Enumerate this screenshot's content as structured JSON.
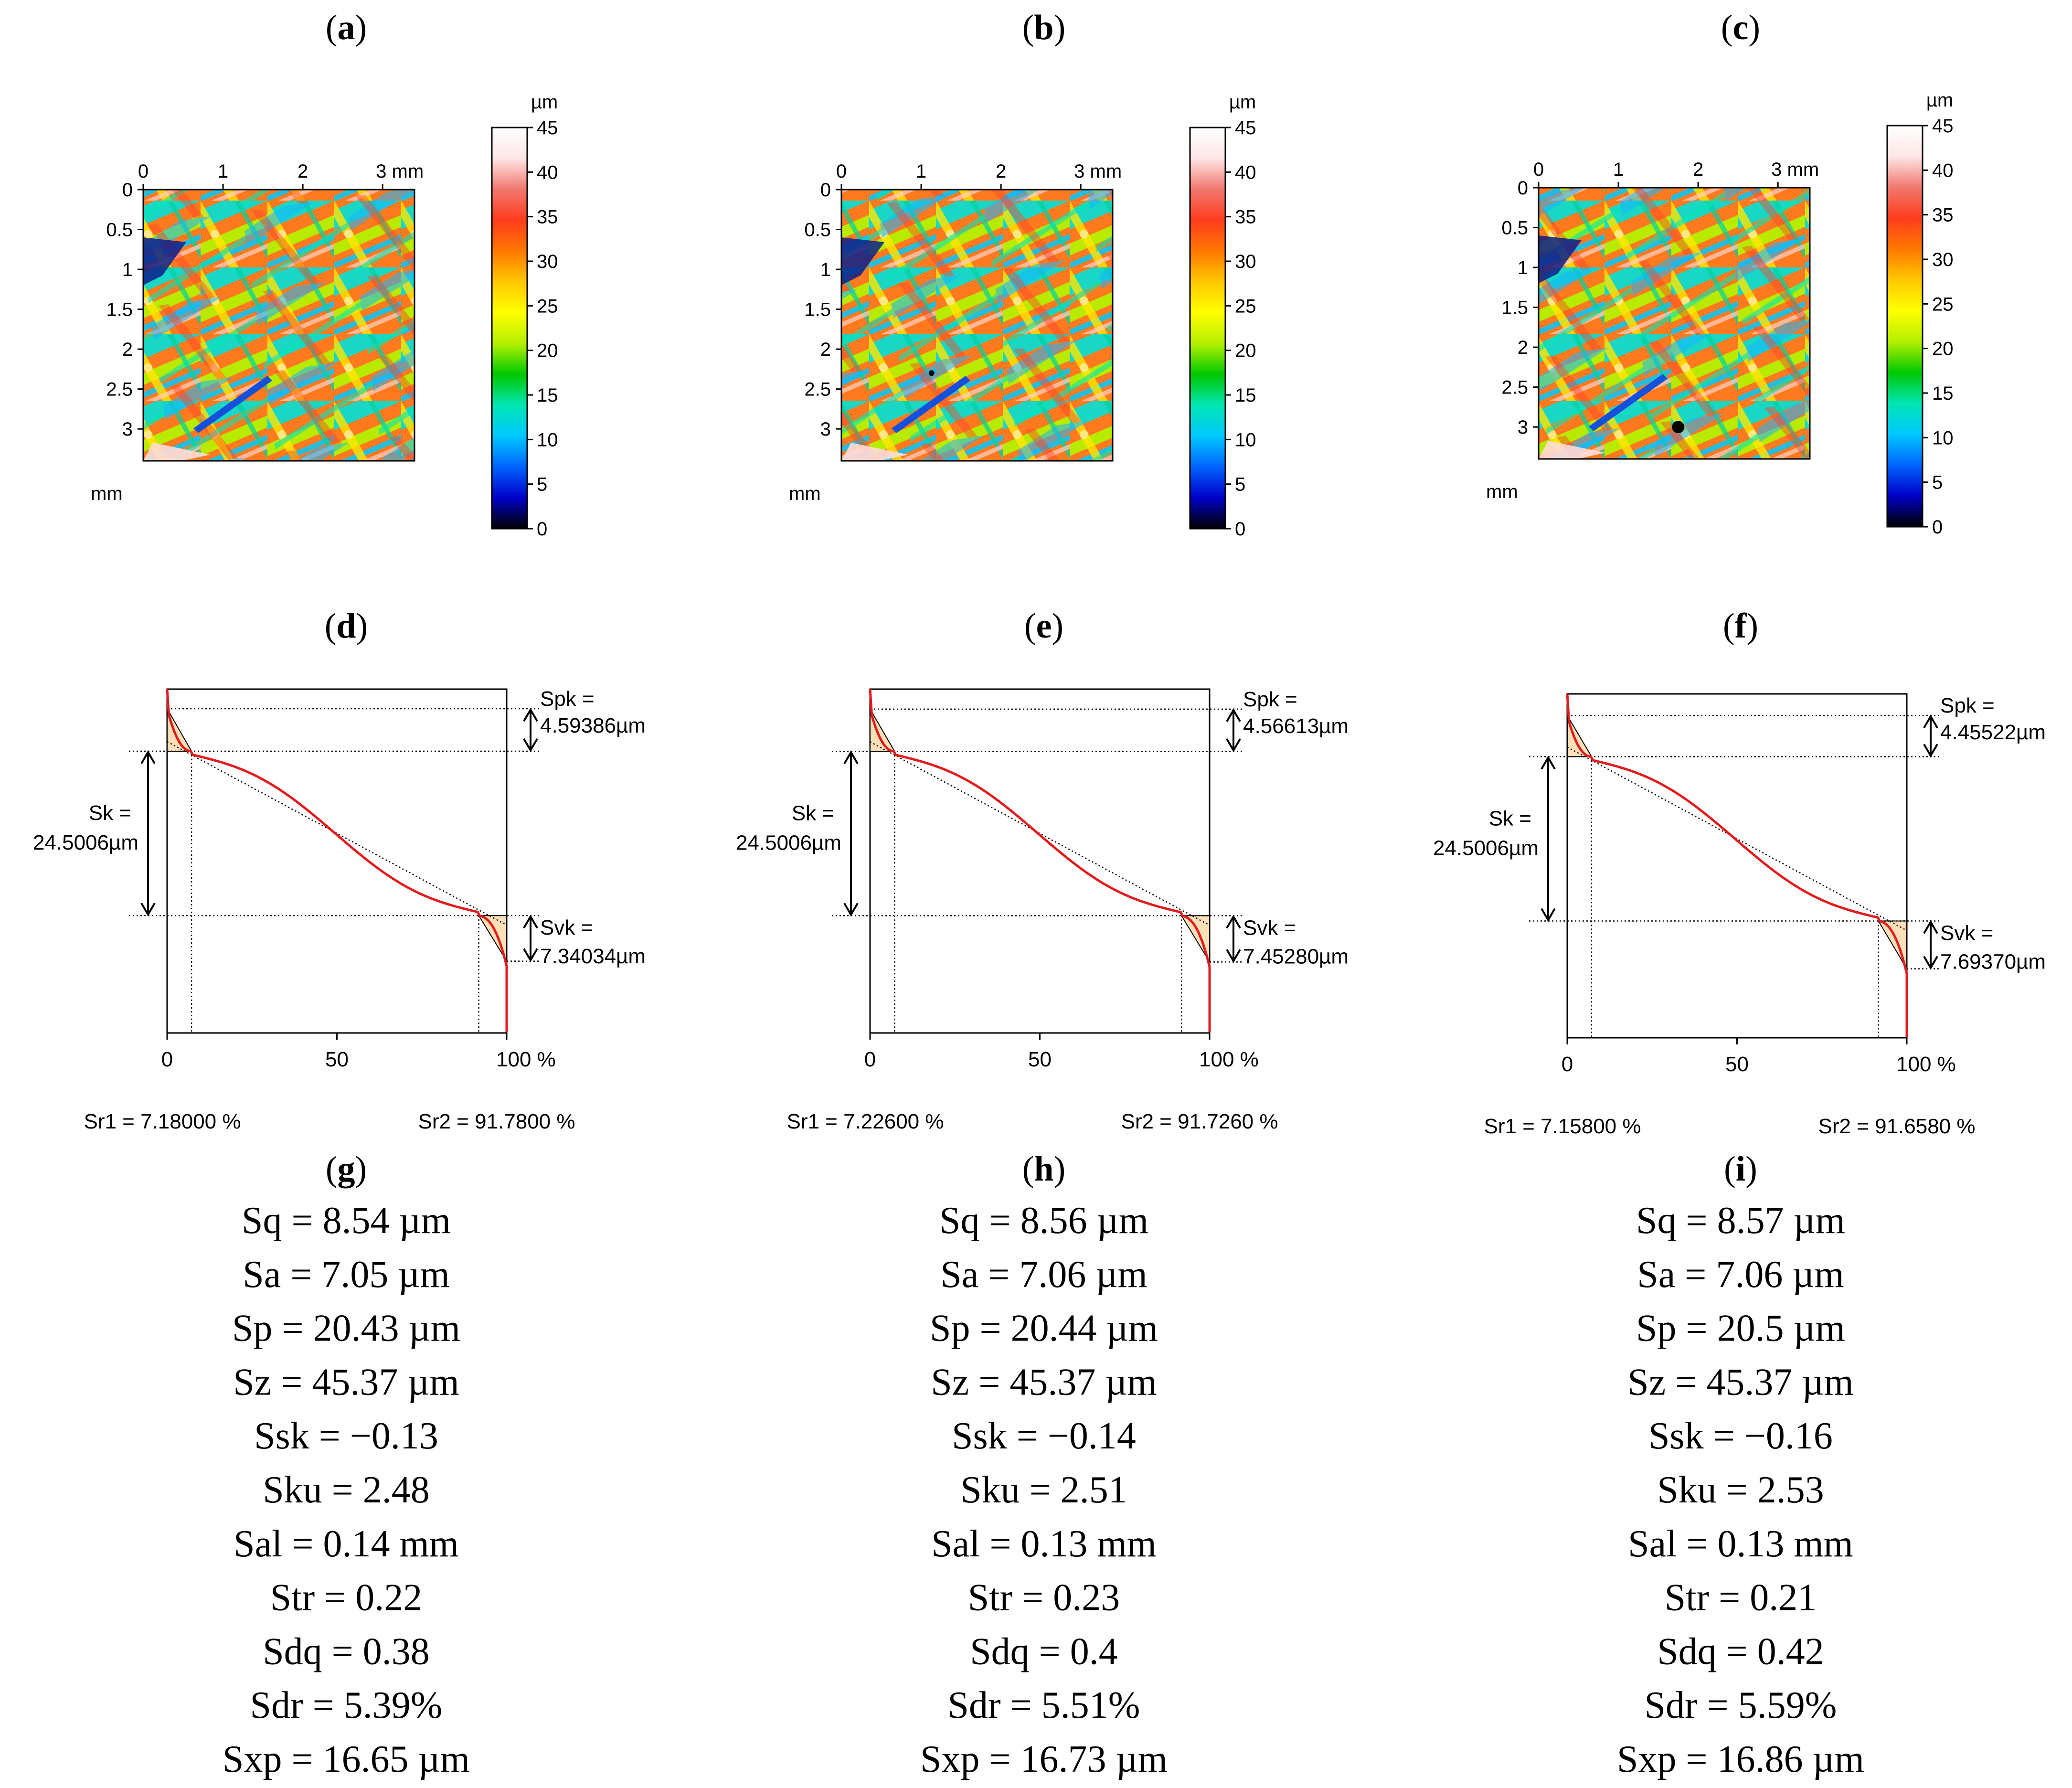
{
  "panel_letters": {
    "a": "a",
    "b": "b",
    "c": "c",
    "d": "d",
    "e": "e",
    "f": "f",
    "g": "g",
    "h": "h",
    "i": "i"
  },
  "colors": {
    "curve": "#e41a1c",
    "fill": "#fde0b8",
    "colorbar": [
      "#000000",
      "#0000c8",
      "#0064ff",
      "#00c8ff",
      "#00e6b4",
      "#00c800",
      "#b4f000",
      "#ffff00",
      "#ffc800",
      "#ff7800",
      "#ff3c1e",
      "#f0786e",
      "#ffe6e6",
      "#ffffff"
    ]
  },
  "chart_data": [
    {
      "id": "a",
      "type": "heatmap",
      "title": "(a)",
      "x_ticks": [
        "0",
        "1",
        "2",
        "3 mm"
      ],
      "y_ticks": [
        "0",
        "0.5",
        "1",
        "1.5",
        "2",
        "2.5",
        "3"
      ],
      "y_unit": "mm",
      "colorbar": {
        "unit": "µm",
        "ticks": [
          "0",
          "5",
          "10",
          "15",
          "20",
          "25",
          "30",
          "35",
          "40",
          "45"
        ],
        "range": [
          0,
          45
        ]
      },
      "marker": null
    },
    {
      "id": "b",
      "type": "heatmap",
      "title": "(b)",
      "x_ticks": [
        "0",
        "1",
        "2",
        "3 mm"
      ],
      "y_ticks": [
        "0",
        "0.5",
        "1",
        "1.5",
        "2",
        "2.5",
        "3"
      ],
      "y_unit": "mm",
      "colorbar": {
        "unit": "µm",
        "ticks": [
          "0",
          "5",
          "10",
          "15",
          "20",
          "25",
          "30",
          "35",
          "40",
          "45"
        ],
        "range": [
          0,
          45
        ]
      },
      "marker": {
        "x_mm": 1.13,
        "y_mm": 2.3,
        "size": "small"
      }
    },
    {
      "id": "c",
      "type": "heatmap",
      "title": "(c)",
      "x_ticks": [
        "0",
        "1",
        "2",
        "3 mm"
      ],
      "y_ticks": [
        "0",
        "0.5",
        "1",
        "1.5",
        "2",
        "2.5",
        "3"
      ],
      "y_unit": "mm",
      "colorbar": {
        "unit": "µm",
        "ticks": [
          "0",
          "5",
          "10",
          "15",
          "20",
          "25",
          "30",
          "35",
          "40",
          "45"
        ],
        "range": [
          0,
          45
        ]
      },
      "marker": {
        "x_mm": 1.75,
        "y_mm": 3.0,
        "size": "large"
      }
    },
    {
      "id": "d",
      "type": "line",
      "title": "(d)",
      "x_ticks": [
        "0",
        "50",
        "100 %"
      ],
      "xlim": [
        0,
        100
      ],
      "spk_label": "Spk =",
      "spk_value": "4.59386µm",
      "sk_label": "Sk =",
      "sk_value": "24.5006µm",
      "svk_label": "Svk =",
      "svk_value": "7.34034µm",
      "sr1_text": "Sr1 = 7.18000 %",
      "sr2_text": "Sr2 = 91.7800 %",
      "sr1": 7.18,
      "sr2": 91.78,
      "spk": 4.59386,
      "sk": 24.5006,
      "svk": 7.34034
    },
    {
      "id": "e",
      "type": "line",
      "title": "(e)",
      "x_ticks": [
        "0",
        "50",
        "100 %"
      ],
      "xlim": [
        0,
        100
      ],
      "spk_label": "Spk =",
      "spk_value": "4.56613µm",
      "sk_label": "Sk =",
      "sk_value": "24.5006µm",
      "svk_label": "Svk =",
      "svk_value": "7.45280µm",
      "sr1_text": "Sr1 = 7.22600 %",
      "sr2_text": "Sr2 = 91.7260 %",
      "sr1": 7.226,
      "sr2": 91.726,
      "spk": 4.56613,
      "sk": 24.5006,
      "svk": 7.4528
    },
    {
      "id": "f",
      "type": "line",
      "title": "(f)",
      "x_ticks": [
        "0",
        "50",
        "100 %"
      ],
      "xlim": [
        0,
        100
      ],
      "spk_label": "Spk =",
      "spk_value": "4.45522µm",
      "sk_label": "Sk =",
      "sk_value": "24.5006µm",
      "svk_label": "Svk =",
      "svk_value": "7.69370µm",
      "sr1_text": "Sr1 = 7.15800 %",
      "sr2_text": "Sr2 = 91.6580 %",
      "sr1": 7.158,
      "sr2": 91.658,
      "spk": 4.45522,
      "sk": 24.5006,
      "svk": 7.6937
    },
    {
      "id": "g",
      "type": "table",
      "title": "(g)",
      "rows": [
        "Sq = 8.54 µm",
        "Sa = 7.05 µm",
        "Sp = 20.43 µm",
        "Sz = 45.37 µm",
        "Ssk = −0.13",
        "Sku = 2.48",
        "Sal = 0.14 mm",
        "Str = 0.22",
        "Sdq = 0.38",
        "Sdr = 5.39%",
        "Sxp = 16.65 µm"
      ]
    },
    {
      "id": "h",
      "type": "table",
      "title": "(h)",
      "rows": [
        "Sq = 8.56 µm",
        "Sa = 7.06 µm",
        "Sp = 20.44 µm",
        "Sz = 45.37 µm",
        "Ssk = −0.14",
        "Sku = 2.51",
        "Sal = 0.13 mm",
        "Str = 0.23",
        "Sdq = 0.4",
        "Sdr = 5.51%",
        "Sxp = 16.73 µm"
      ]
    },
    {
      "id": "i",
      "type": "table",
      "title": "(i)",
      "rows": [
        "Sq = 8.57 µm",
        "Sa = 7.06 µm",
        "Sp = 20.5 µm",
        "Sz = 45.37 µm",
        "Ssk = −0.16",
        "Sku = 2.53",
        "Sal = 0.13 mm",
        "Str = 0.21",
        "Sdq = 0.42",
        "Sdr = 5.59%",
        "Sxp = 16.86 µm"
      ]
    }
  ]
}
